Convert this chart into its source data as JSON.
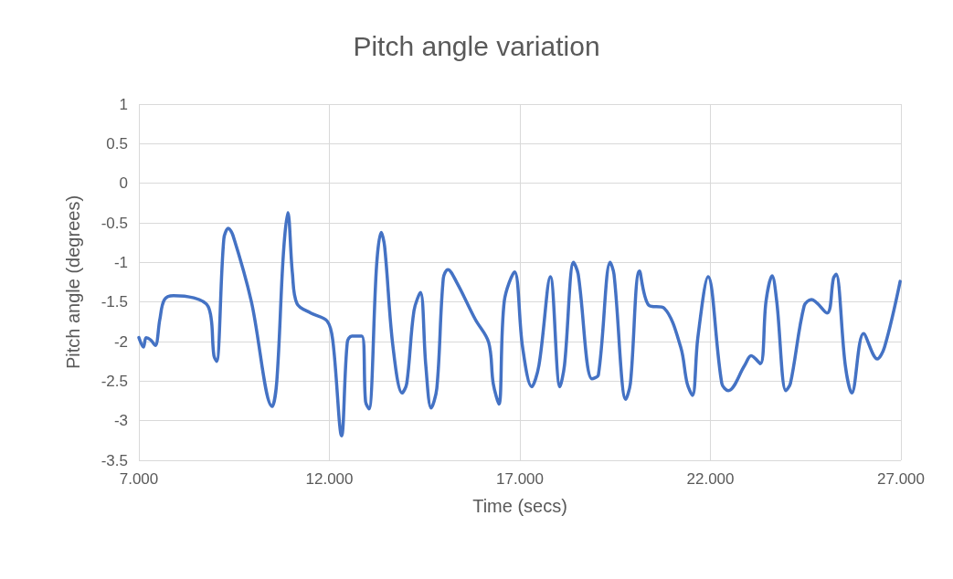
{
  "chart_data": {
    "type": "line",
    "title": "Pitch angle variation",
    "xlabel": "Time (secs)",
    "ylabel": "Pitch angle (degrees)",
    "xlim": [
      7,
      27
    ],
    "xticks": [
      {
        "value": 7,
        "label": "7.000"
      },
      {
        "value": 12,
        "label": "12.000"
      },
      {
        "value": 17,
        "label": "17.000"
      },
      {
        "value": 22,
        "label": "22.000"
      },
      {
        "value": 27,
        "label": "27.000"
      }
    ],
    "ylim": [
      -3.5,
      1
    ],
    "yticks": [
      -3.5,
      -3,
      -2.5,
      -2,
      -1.5,
      -1,
      -0.5,
      0,
      0.5,
      1
    ],
    "grid": true,
    "marker": "none",
    "line_style": "solid",
    "series": [
      {
        "color": "#4472c4",
        "x": [
          7.0,
          7.12,
          7.19,
          7.31,
          7.43,
          7.55,
          7.67,
          7.91,
          8.82,
          8.97,
          9.04,
          9.23,
          9.35,
          9.47,
          9.95,
          10.5,
          10.62,
          10.79,
          10.91,
          11.03,
          11.15,
          11.51,
          11.94,
          12.09,
          12.32,
          12.47,
          12.59,
          12.85,
          12.95,
          13.04,
          13.24,
          13.36,
          13.45,
          13.67,
          13.91,
          14.03,
          14.22,
          14.39,
          14.53,
          14.67,
          14.82,
          14.99,
          15.11,
          15.35,
          15.83,
          16.18,
          16.3,
          16.45,
          16.59,
          16.86,
          17.07,
          17.31,
          17.5,
          17.8,
          18.05,
          18.17,
          18.41,
          18.53,
          18.89,
          19.06,
          19.37,
          19.47,
          19.78,
          19.9,
          20.14,
          20.38,
          20.79,
          21.22,
          21.39,
          21.53,
          21.67,
          21.94,
          22.3,
          22.47,
          22.9,
          23.07,
          23.31,
          23.46,
          23.62,
          23.74,
          23.98,
          24.1,
          24.46,
          24.65,
          25.06,
          25.23,
          25.3,
          25.54,
          25.71,
          26.02,
          26.38,
          26.57,
          26.98
        ],
        "values": [
          -1.95,
          -2.07,
          -1.95,
          -1.98,
          -2.05,
          -1.72,
          -1.47,
          -1.42,
          -1.56,
          -2.18,
          -2.25,
          -0.7,
          -0.57,
          -0.66,
          -1.49,
          -2.82,
          -2.5,
          -0.91,
          -0.37,
          -1.14,
          -1.52,
          -1.64,
          -1.74,
          -1.99,
          -3.19,
          -2.01,
          -1.93,
          -1.93,
          -2.76,
          -2.85,
          -1.03,
          -0.62,
          -0.8,
          -2.07,
          -2.65,
          -2.53,
          -1.61,
          -1.38,
          -2.3,
          -2.84,
          -2.59,
          -1.2,
          -1.09,
          -1.26,
          -1.72,
          -2.01,
          -2.53,
          -2.79,
          -1.49,
          -1.12,
          -2.07,
          -2.57,
          -2.3,
          -1.18,
          -2.57,
          -2.3,
          -1.0,
          -1.15,
          -2.47,
          -2.42,
          -1.0,
          -1.15,
          -2.73,
          -2.53,
          -1.11,
          -1.54,
          -1.58,
          -2.07,
          -2.53,
          -2.68,
          -1.95,
          -1.18,
          -2.53,
          -2.62,
          -2.3,
          -2.18,
          -2.28,
          -1.49,
          -1.17,
          -1.49,
          -2.62,
          -2.53,
          -1.55,
          -1.47,
          -1.64,
          -1.2,
          -1.15,
          -2.3,
          -2.65,
          -1.9,
          -2.22,
          -2.07,
          -1.24
        ]
      }
    ]
  }
}
